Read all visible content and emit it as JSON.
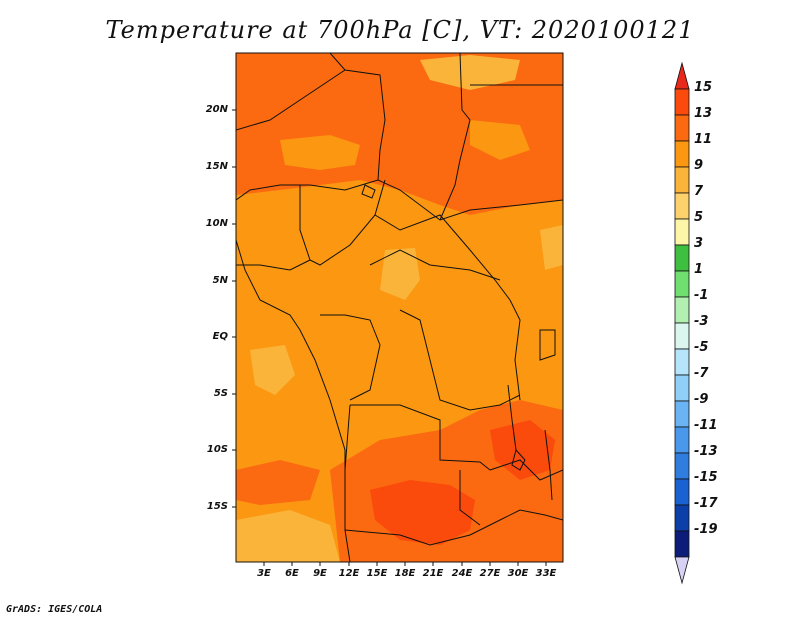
{
  "title": "Temperature at 700hPa [C], VT: 2020100121",
  "credit": "GrADS: IGES/COLA",
  "map": {
    "lat_labels": [
      "20N",
      "15N",
      "10N",
      "5N",
      "EQ",
      "5S",
      "10S",
      "15S"
    ],
    "lon_labels": [
      "3E",
      "6E",
      "9E",
      "12E",
      "15E",
      "18E",
      "21E",
      "24E",
      "27E",
      "30E",
      "33E"
    ]
  },
  "colorbar": {
    "labels": [
      "15",
      "13",
      "11",
      "9",
      "7",
      "5",
      "3",
      "1",
      "-1",
      "-3",
      "-5",
      "-7",
      "-9",
      "-11",
      "-13",
      "-15",
      "-17",
      "-19"
    ],
    "colors": [
      "#e8281a",
      "#fa4a0c",
      "#fb6a10",
      "#fb9711",
      "#fbb43a",
      "#fdd26c",
      "#fdf6a8",
      "#3fbf3f",
      "#6fdf6f",
      "#b2f0b2",
      "#dbf5ef",
      "#b6e4fb",
      "#8fcff8",
      "#6ab4f3",
      "#4a98ec",
      "#2f7ddf",
      "#1a62d2",
      "#0c3fa8",
      "#0b1d78",
      "#d7d2f3"
    ]
  }
}
